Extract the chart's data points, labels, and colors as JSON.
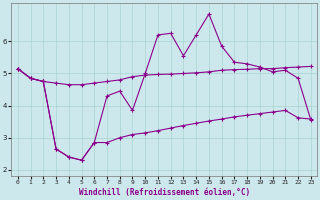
{
  "xlabel": "Windchill (Refroidissement éolien,°C)",
  "background_color": "#cde8ed",
  "grid_color": "#a8d5cc",
  "line_color": "#8b008b",
  "xlim": [
    -0.5,
    23.5
  ],
  "ylim": [
    1.8,
    7.2
  ],
  "yticks": [
    2,
    3,
    4,
    5,
    6
  ],
  "xticks": [
    0,
    1,
    2,
    3,
    4,
    5,
    6,
    7,
    8,
    9,
    10,
    11,
    12,
    13,
    14,
    15,
    16,
    17,
    18,
    19,
    20,
    21,
    22,
    23
  ],
  "line1_x": [
    0,
    1,
    2,
    3,
    4,
    5,
    6,
    7,
    8,
    9,
    10,
    11,
    12,
    13,
    14,
    15,
    16,
    17,
    18,
    19,
    20,
    21,
    22,
    23
  ],
  "line1_y": [
    5.15,
    4.85,
    4.75,
    4.7,
    4.65,
    4.65,
    4.7,
    4.75,
    4.8,
    4.9,
    4.95,
    4.97,
    4.98,
    5.0,
    5.02,
    5.05,
    5.1,
    5.12,
    5.13,
    5.15,
    5.15,
    5.18,
    5.2,
    5.22
  ],
  "line2_x": [
    0,
    1,
    2,
    3,
    4,
    5,
    6,
    7,
    8,
    9,
    10,
    11,
    12,
    13,
    14,
    15,
    16,
    17,
    18,
    19,
    20,
    21,
    22,
    23
  ],
  "line2_y": [
    5.15,
    4.85,
    4.75,
    2.65,
    2.4,
    2.3,
    2.85,
    4.3,
    4.45,
    3.85,
    5.0,
    6.2,
    6.25,
    5.55,
    6.2,
    6.85,
    5.85,
    5.35,
    5.3,
    5.2,
    5.05,
    5.1,
    4.85,
    3.55
  ],
  "line3_x": [
    0,
    1,
    2,
    3,
    4,
    5,
    6,
    7,
    8,
    9,
    10,
    11,
    12,
    13,
    14,
    15,
    16,
    17,
    18,
    19,
    20,
    21,
    22,
    23
  ],
  "line3_y": [
    5.15,
    4.85,
    4.75,
    2.65,
    2.4,
    2.3,
    2.85,
    2.85,
    3.0,
    3.1,
    3.15,
    3.22,
    3.3,
    3.38,
    3.45,
    3.52,
    3.58,
    3.65,
    3.7,
    3.75,
    3.8,
    3.85,
    3.62,
    3.58
  ],
  "marker": "+",
  "markersize": 3,
  "linewidth": 0.8,
  "tick_labelsize": 5,
  "xlabel_fontsize": 5.5
}
